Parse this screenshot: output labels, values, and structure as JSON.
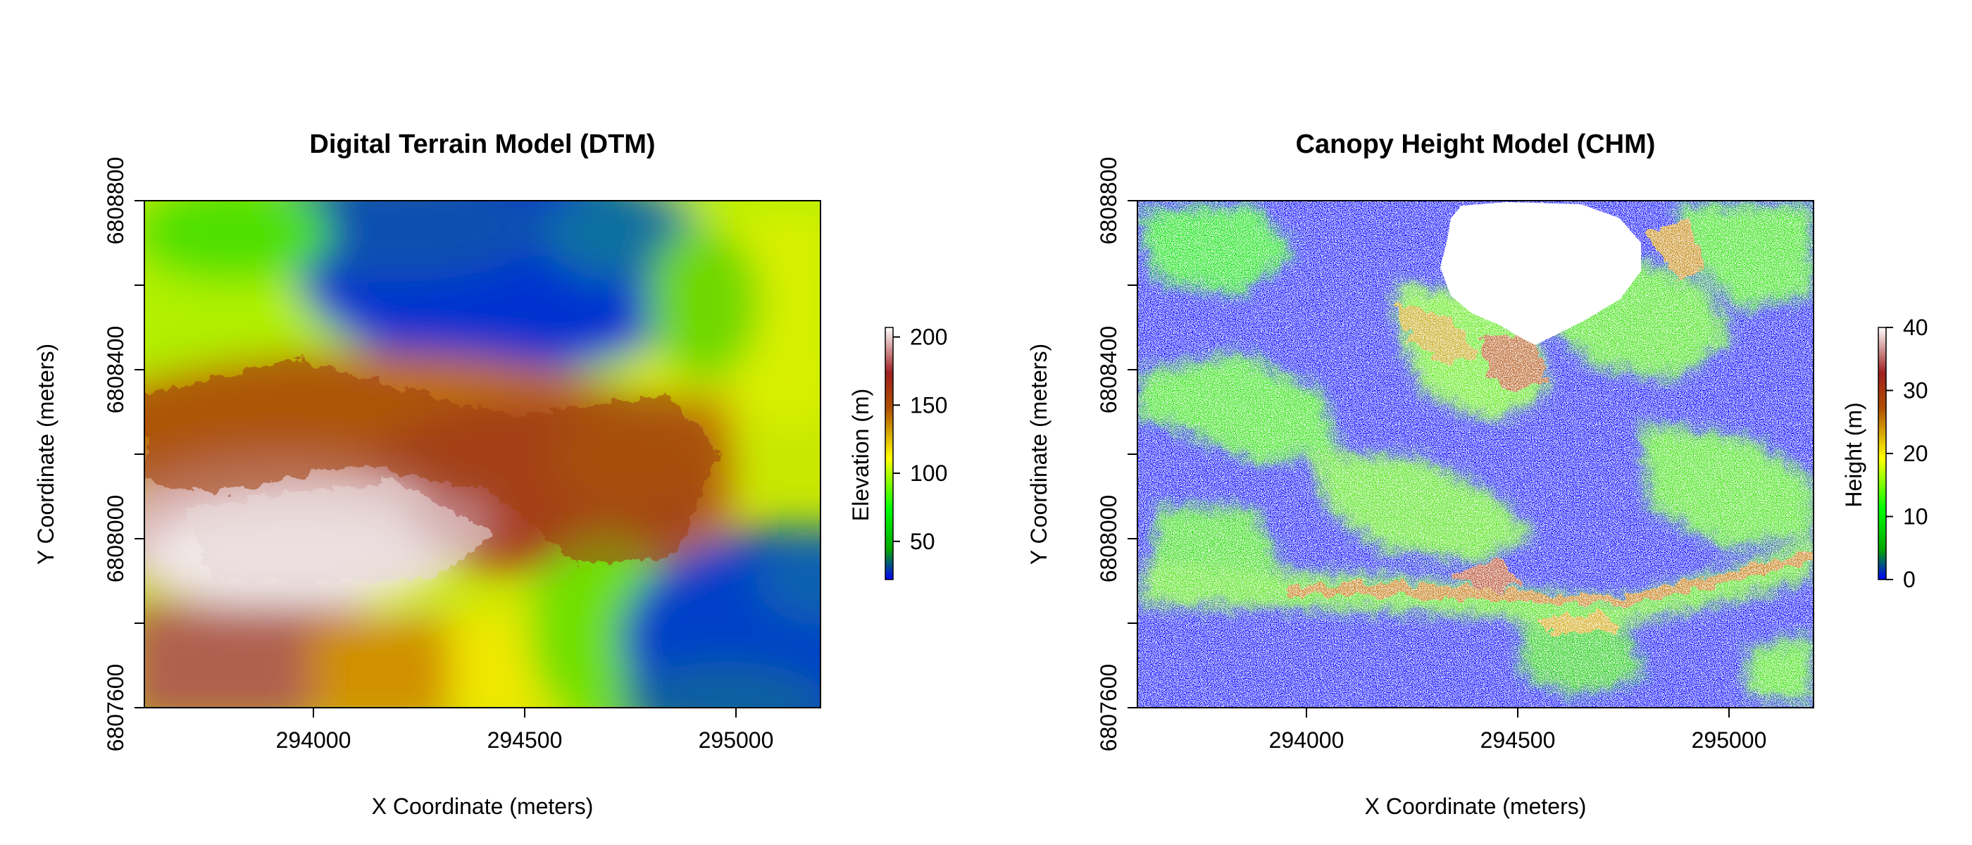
{
  "chart_data": [
    {
      "type": "heatmap",
      "title": "Digital Terrain Model (DTM)",
      "xlabel": "X Coordinate (meters)",
      "ylabel": "Y Coordinate (meters)",
      "xlim": [
        293600,
        295200
      ],
      "ylim": [
        6807600,
        6808800
      ],
      "x_ticks": [
        294000,
        294500,
        295000
      ],
      "y_ticks": [
        6807600,
        6808000,
        6808400,
        6808800
      ],
      "y_minor_ticks": [
        6807800,
        6808200,
        6808600
      ],
      "x_tick_labels": [
        "294000",
        "294500",
        "295000"
      ],
      "y_tick_labels": [
        "6807600",
        "6808000",
        "6808400",
        "6808800"
      ],
      "colorbar": {
        "label": "Elevation (m)",
        "range": [
          22,
          207
        ],
        "ticks": [
          50,
          100,
          150,
          200
        ],
        "tick_labels": [
          "50",
          "100",
          "150",
          "200"
        ],
        "colors": [
          "#0000ff",
          "#00a800",
          "#00ff00",
          "#ffff00",
          "#b05000",
          "#a02020",
          "#ffffff"
        ]
      },
      "grid": false,
      "notable_regions": [
        {
          "x": 294350,
          "y": 6808670,
          "value": 25
        },
        {
          "x": 293850,
          "y": 6807940,
          "value": 207
        },
        {
          "x": 295100,
          "y": 6807800,
          "value": 30
        }
      ]
    },
    {
      "type": "heatmap",
      "title": "Canopy Height Model (CHM)",
      "xlabel": "X Coordinate (meters)",
      "ylabel": "Y Coordinate (meters)",
      "xlim": [
        293600,
        295200
      ],
      "ylim": [
        6807600,
        6808800
      ],
      "x_ticks": [
        294000,
        294500,
        295000
      ],
      "y_ticks": [
        6807600,
        6808000,
        6808400,
        6808800
      ],
      "y_minor_ticks": [
        6807800,
        6808200,
        6808600
      ],
      "x_tick_labels": [
        "294000",
        "294500",
        "295000"
      ],
      "y_tick_labels": [
        "6807600",
        "6808000",
        "6808400",
        "6808800"
      ],
      "colorbar": {
        "label": "Height (m)",
        "range": [
          0,
          40
        ],
        "ticks": [
          0,
          10,
          20,
          30,
          40
        ],
        "tick_labels": [
          "0",
          "10",
          "20",
          "30",
          "40"
        ],
        "colors": [
          "#0000ff",
          "#00a800",
          "#00ff00",
          "#ffff00",
          "#b05000",
          "#a02020",
          "#ffffff"
        ]
      },
      "grid": false,
      "no_data_regions": [
        "lake at top center"
      ]
    }
  ]
}
